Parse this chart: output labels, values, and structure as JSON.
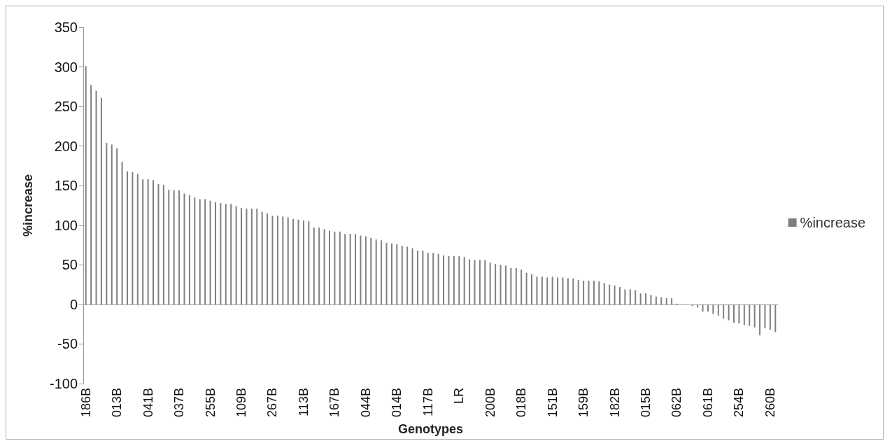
{
  "chart_data": {
    "type": "bar",
    "xlabel": "Genotypes",
    "ylabel": "%increase",
    "categories": [
      "186B",
      null,
      null,
      null,
      null,
      null,
      "013B",
      null,
      null,
      null,
      null,
      null,
      "041B",
      null,
      null,
      null,
      null,
      null,
      "037B",
      null,
      null,
      null,
      null,
      null,
      "255B",
      null,
      null,
      null,
      null,
      null,
      "109B",
      null,
      null,
      null,
      null,
      null,
      "267B",
      null,
      null,
      null,
      null,
      null,
      "113B",
      null,
      null,
      null,
      null,
      null,
      "167B",
      null,
      null,
      null,
      null,
      null,
      "044B",
      null,
      null,
      null,
      null,
      null,
      "014B",
      null,
      null,
      null,
      null,
      null,
      "117B",
      null,
      null,
      null,
      null,
      null,
      "LR",
      null,
      null,
      null,
      null,
      null,
      "200B",
      null,
      null,
      null,
      null,
      null,
      "018B",
      null,
      null,
      null,
      null,
      null,
      "151B",
      null,
      null,
      null,
      null,
      null,
      "159B",
      null,
      null,
      null,
      null,
      null,
      "182B",
      null,
      null,
      null,
      null,
      null,
      "015B",
      null,
      null,
      null,
      null,
      null,
      "062B",
      null,
      null,
      null,
      null,
      null,
      "061B",
      null,
      null,
      null,
      null,
      null,
      "254B",
      null,
      null,
      null,
      null,
      null,
      "260B",
      null
    ],
    "series": [
      {
        "name": "%increase",
        "color": "#7f7f7f",
        "values": [
          301,
          277,
          270,
          261,
          204,
          202,
          197,
          180,
          168,
          167,
          165,
          158,
          158,
          157,
          152,
          151,
          145,
          144,
          144,
          140,
          138,
          135,
          133,
          133,
          131,
          129,
          128,
          127,
          127,
          124,
          122,
          121,
          121,
          121,
          117,
          115,
          112,
          112,
          111,
          110,
          108,
          107,
          106,
          105,
          97,
          97,
          95,
          93,
          92,
          92,
          89,
          89,
          89,
          87,
          86,
          84,
          82,
          81,
          78,
          77,
          76,
          74,
          73,
          71,
          68,
          68,
          65,
          65,
          64,
          62,
          61,
          61,
          61,
          60,
          57,
          56,
          56,
          56,
          53,
          51,
          50,
          49,
          46,
          46,
          44,
          40,
          38,
          35,
          35,
          34,
          35,
          34,
          34,
          33,
          33,
          31,
          30,
          30,
          30,
          29,
          27,
          25,
          24,
          22,
          19,
          19,
          18,
          14,
          14,
          12,
          10,
          9,
          8,
          8,
          1,
          0,
          0,
          -2,
          -4,
          -9,
          -9,
          -12,
          -14,
          -18,
          -20,
          -23,
          -24,
          -26,
          -27,
          -29,
          -39,
          -30,
          -32,
          -35
        ]
      }
    ],
    "ylim": [
      -100,
      350
    ],
    "yticks": [
      -100,
      -50,
      0,
      50,
      100,
      150,
      200,
      250,
      300,
      350
    ],
    "legend": "right"
  }
}
